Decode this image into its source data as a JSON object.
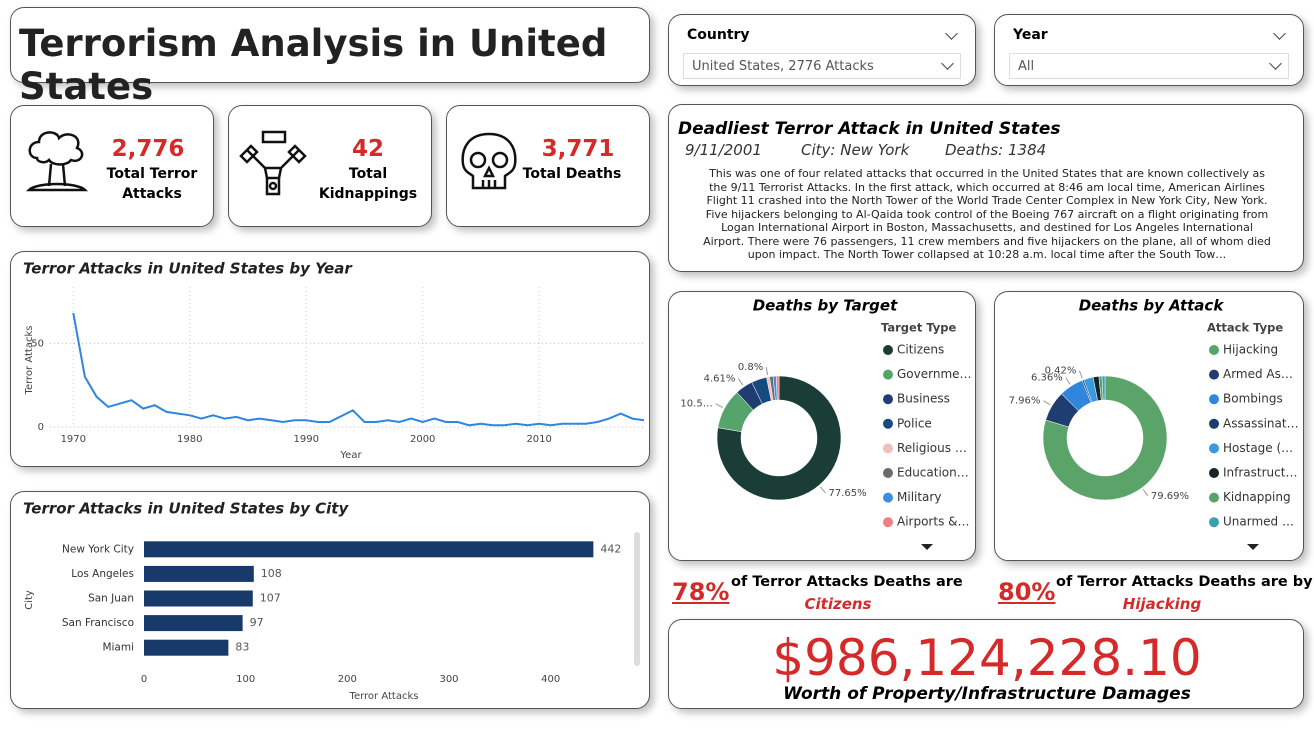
{
  "header": {
    "title": "Terrorism Analysis in United States"
  },
  "filters": [
    {
      "label": "Country",
      "value": "United States, 2776 Attacks"
    },
    {
      "label": "Year",
      "value": "All"
    }
  ],
  "kpis": [
    {
      "value": "2,776",
      "label": "Total Terror Attacks"
    },
    {
      "value": "42",
      "label": "Total Kidnappings"
    },
    {
      "value": "3,771",
      "label": "Total Deaths"
    }
  ],
  "deadliest": {
    "title": "Deadliest Terror Attack in United States",
    "date": "9/11/2001",
    "city": "City: New York",
    "deaths": "Deaths: 1384",
    "description": "This was one of four related attacks that occurred in the United States that are known collectively as the 9/11 Terrorist Attacks. In the first attack, which occurred at 8:46 am local time, American Airlines Flight 11 crashed into the North Tower of the World Trade Center Complex in New York City, New York. Five hijackers belonging to Al-Qaida took control of the Boeing 767 aircraft on a flight originating from Logan International Airport in Boston, Massachusetts, and destined for Los Angeles International Airport. There were 76 passengers, 11 crew members and five hijackers on the plane, all of whom died upon impact. The North Tower collapsed at 10:28 a.m. local time after the South Tow…"
  },
  "chart_data": [
    {
      "type": "line",
      "title": "Terror Attacks in United States by Year",
      "x_label": "Year",
      "y_label": "Terror Attacks",
      "x": [
        1970,
        1971,
        1972,
        1973,
        1974,
        1975,
        1976,
        1977,
        1978,
        1979,
        1980,
        1981,
        1982,
        1983,
        1984,
        1985,
        1986,
        1987,
        1988,
        1989,
        1990,
        1991,
        1992,
        1994,
        1995,
        1996,
        1997,
        1998,
        1999,
        2000,
        2001,
        2002,
        2003,
        2004,
        2005,
        2006,
        2007,
        2008,
        2009,
        2010,
        2011,
        2012,
        2013,
        2014,
        2015,
        2016,
        2017,
        2018,
        2019
      ],
      "values": [
        68,
        30,
        18,
        12,
        14,
        16,
        11,
        13,
        9,
        8,
        7,
        5,
        7,
        5,
        6,
        4,
        5,
        4,
        3,
        4,
        4,
        3,
        3,
        10,
        3,
        3,
        4,
        3,
        5,
        3,
        5,
        3,
        3,
        1,
        2,
        1,
        1,
        2,
        1,
        2,
        1,
        2,
        2,
        2,
        3,
        5,
        8,
        5,
        4
      ],
      "color": "#2e86de",
      "xlim": [
        1968,
        2019
      ],
      "ylim": [
        0,
        80
      ],
      "xticks": [
        1970,
        1980,
        1990,
        2000,
        2010
      ],
      "yticks": [
        0,
        50
      ],
      "grid": true
    },
    {
      "type": "pie",
      "title": "Deaths by Target",
      "legend_title": "Target Type",
      "categories": [
        "Citizens",
        "Governme…",
        "Business",
        "Police",
        "Religious …",
        "Education…",
        "Military",
        "Airports &…"
      ],
      "values": [
        77.65,
        10.5,
        4.61,
        4.0,
        0.8,
        0.9,
        0.8,
        0.74
      ],
      "value_labels": [
        "77.65%",
        "10.5…",
        "4.61%",
        null,
        "0.8%",
        null,
        null,
        null
      ],
      "colors": [
        "#1b3d38",
        "#56a36c",
        "#1f3d70",
        "#174a7e",
        "#f4bcbc",
        "#6b6b6b",
        "#3a8ee6",
        "#f08080"
      ]
    },
    {
      "type": "pie",
      "title": "Deaths by Attack",
      "legend_title": "Attack Type",
      "categories": [
        "Hijacking",
        "Armed As…",
        "Bombings",
        "Assassinat…",
        "Hostage (…",
        "Infrastruct…",
        "Kidnapping",
        "Unarmed …"
      ],
      "values": [
        79.69,
        7.96,
        6.36,
        0.42,
        2.5,
        1.5,
        0.8,
        0.77
      ],
      "value_labels": [
        "79.69%",
        "7.96%",
        "6.36%",
        "0.42%",
        null,
        null,
        null,
        null
      ],
      "colors": [
        "#5aa469",
        "#1f3d70",
        "#2e86de",
        "#1b3d6e",
        "#3a9ae0",
        "#14252a",
        "#56a36c",
        "#3aa0b0"
      ]
    },
    {
      "type": "hbar",
      "title": "Terror Attacks in United States by City",
      "x_label": "Terror Attacks",
      "y_label": "City",
      "categories": [
        "New York City",
        "Los Angeles",
        "San Juan",
        "San Francisco",
        "Miami"
      ],
      "values": [
        442,
        108,
        107,
        97,
        83
      ],
      "color": "#173a6b",
      "xlim": [
        0,
        480
      ],
      "xticks": [
        0,
        100,
        200,
        300,
        400
      ]
    }
  ],
  "insights": [
    {
      "percent": "78%",
      "text": "of Terror Attacks Deaths are",
      "subject": "Citizens"
    },
    {
      "percent": "80%",
      "text": "of Terror Attacks Deaths are by",
      "subject": "Hijacking"
    }
  ],
  "damage": {
    "value": "$986,124,228.10",
    "label": "Worth of Property/Infrastructure Damages"
  }
}
